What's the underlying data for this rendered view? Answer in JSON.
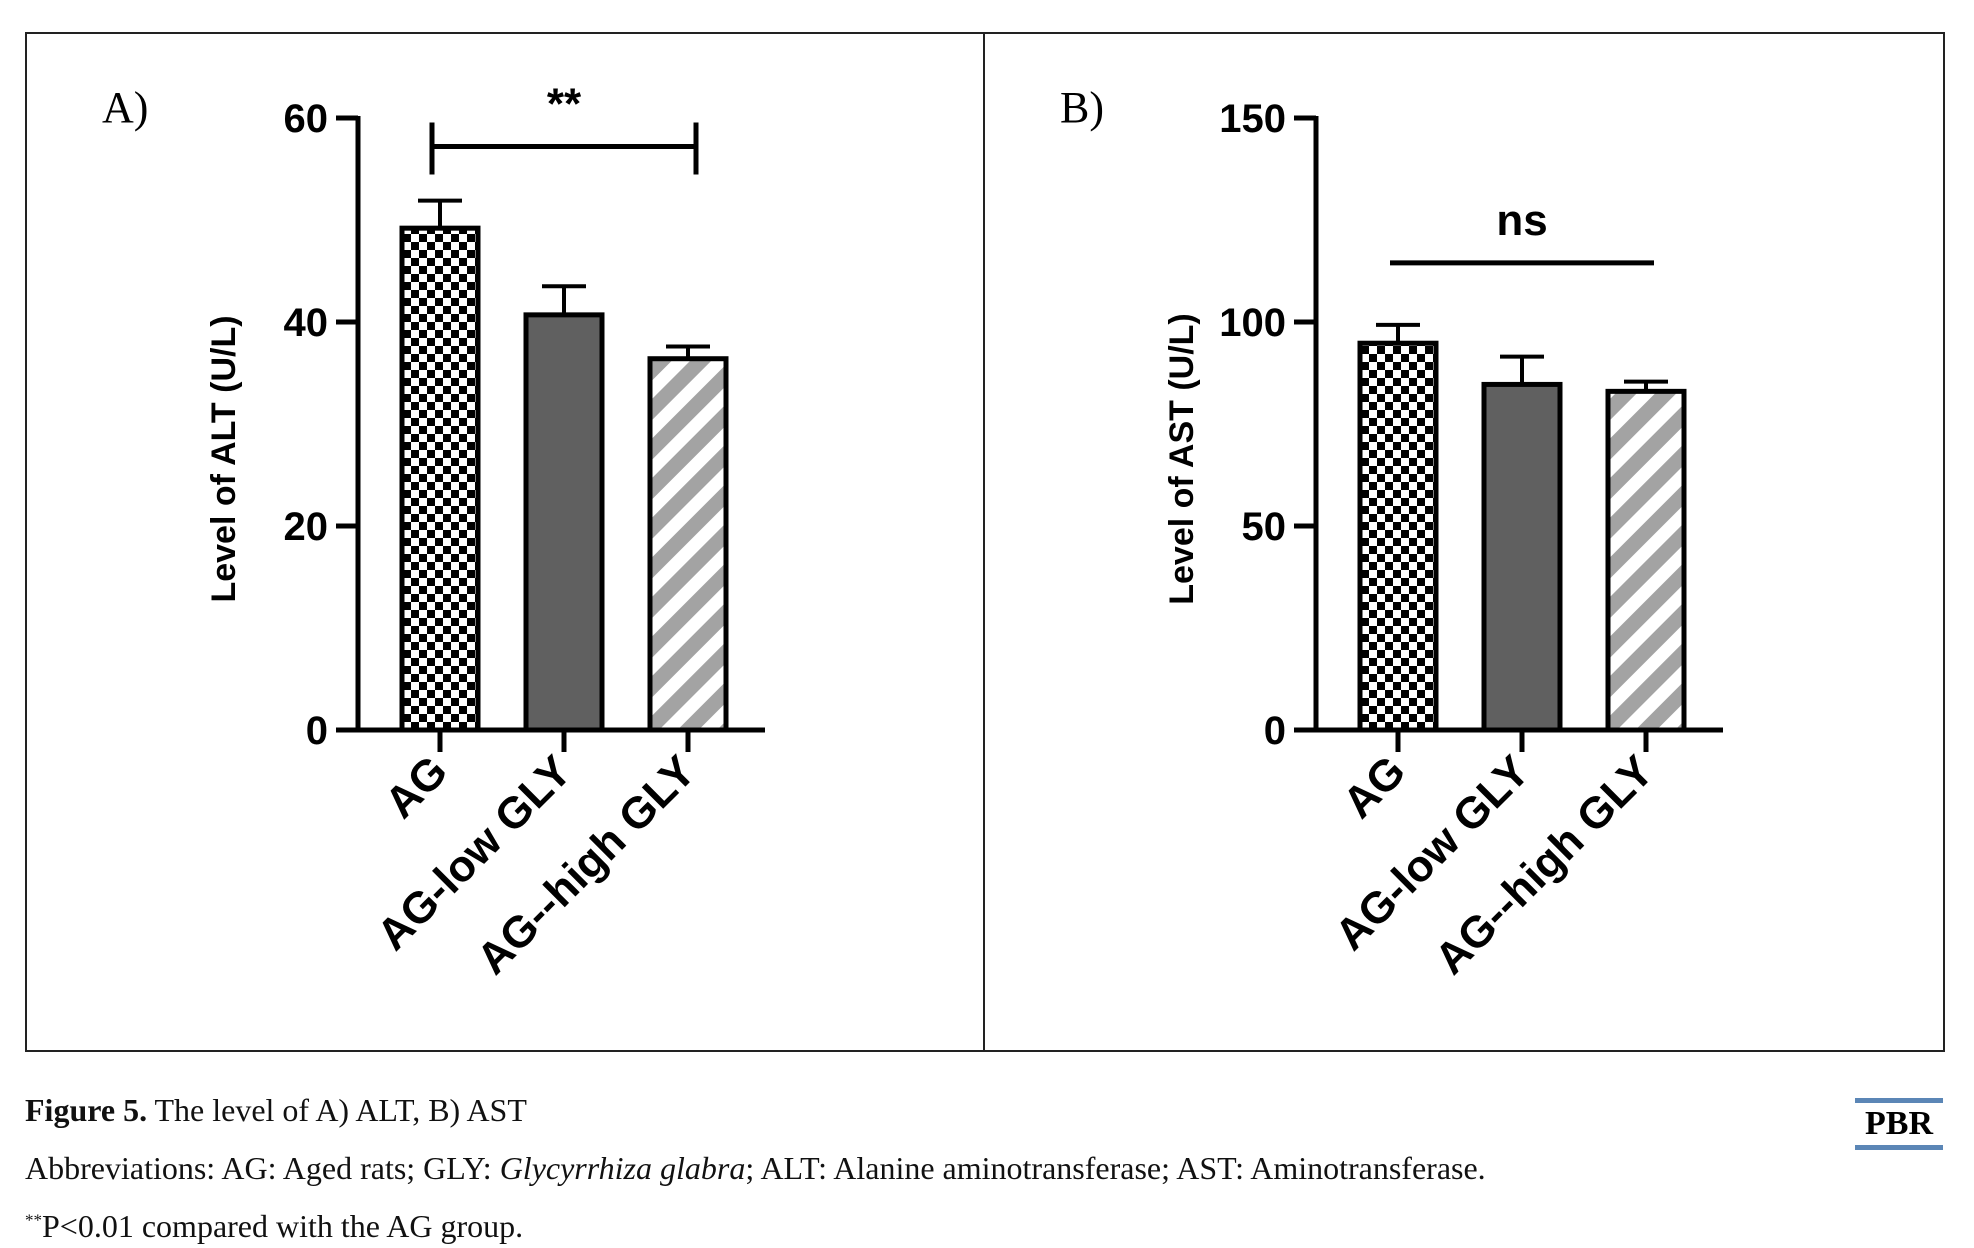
{
  "chart_data": [
    {
      "type": "bar",
      "panel_label": "A)",
      "ylabel": "Level of ALT (U/L)",
      "xlabel": "",
      "categories": [
        "AG",
        "AG-low GLY",
        "AG--high GLY"
      ],
      "values": [
        49.2,
        40.7,
        36.4
      ],
      "errors": [
        2.7,
        2.8,
        1.2
      ],
      "bar_patterns": [
        "checkerboard",
        "solid",
        "diagonal-stripes"
      ],
      "ylim": [
        0,
        60
      ],
      "yticks": [
        0,
        20,
        40,
        60
      ],
      "grid": false,
      "significance": {
        "from": 0,
        "to": 2,
        "label": "**",
        "y": 57.2,
        "end_caps": true
      }
    },
    {
      "type": "bar",
      "panel_label": "B)",
      "ylabel": "Level of AST (U/L)",
      "xlabel": "",
      "categories": [
        "AG",
        "AG-low GLY",
        "AG--high GLY"
      ],
      "values": [
        94.8,
        84.7,
        83.0
      ],
      "errors": [
        4.5,
        6.8,
        2.4
      ],
      "bar_patterns": [
        "checkerboard",
        "solid",
        "diagonal-stripes"
      ],
      "ylim": [
        0,
        150
      ],
      "yticks": [
        0,
        50,
        100,
        150
      ],
      "grid": false,
      "significance": {
        "from": 0,
        "to": 2,
        "label": "ns",
        "y": 114.5,
        "end_caps": false
      }
    }
  ],
  "colors": {
    "bar_outline": "#000000",
    "checker_dark": "#000000",
    "checker_light": "#ffffff",
    "solid_fill": "#606060",
    "stripe_fill": "#a3a3a3",
    "stripe_background": "#ffffff",
    "logo_rule": "#5b86b6"
  },
  "caption": {
    "figure_label": "Figure 5.",
    "title": " The level of A) ALT, B) AST",
    "abbrev_prefix": "Abbreviations: AG: Aged rats; GLY: ",
    "abbrev_italic": "Glycyrrhiza glabra",
    "abbrev_suffix": "; ALT: Alanine aminotransferase; AST: Aminotransferase.",
    "note_sup": "**",
    "note_text": "P<0.01 compared with the AG group."
  },
  "logo": {
    "text": "PBR"
  }
}
